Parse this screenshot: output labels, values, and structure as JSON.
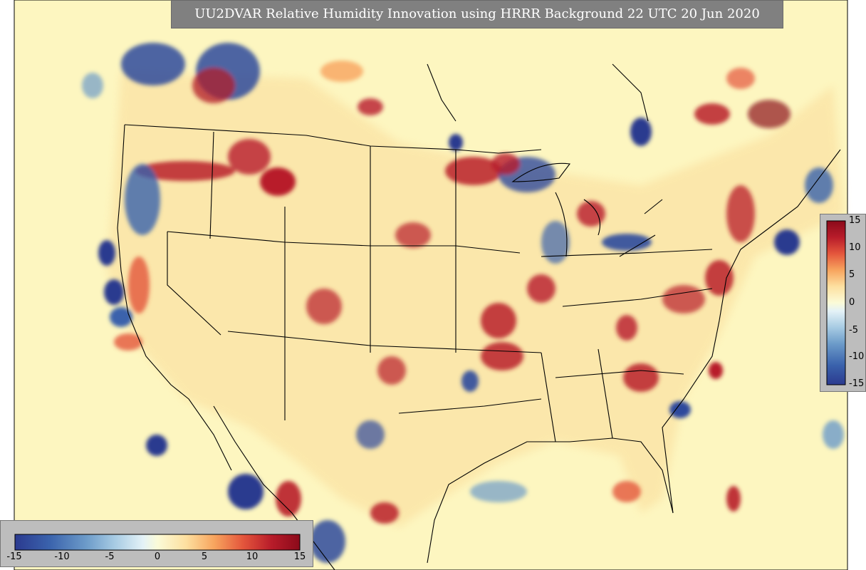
{
  "title": "UU2DVAR Relative Humidity Innovation using HRRR Background 22 UTC 20 Jun 2020",
  "colorbar": {
    "ticks_vertical": [
      "15",
      "10",
      "5",
      "0",
      "-5",
      "-10",
      "-15"
    ],
    "ticks_horizontal": [
      "-15",
      "-10",
      "-5",
      "0",
      "5",
      "10",
      "15"
    ],
    "range": [
      -15,
      15
    ],
    "colors": [
      "#2b3a8f",
      "#3a62ac",
      "#6c9bc9",
      "#a7cbe3",
      "#e4f2f7",
      "#fbfbd8",
      "#fde0a0",
      "#f7a45e",
      "#e4563c",
      "#b81c2a",
      "#8b0a1a"
    ]
  },
  "map": {
    "background": "#fefbc4",
    "border_color": "#000000"
  }
}
